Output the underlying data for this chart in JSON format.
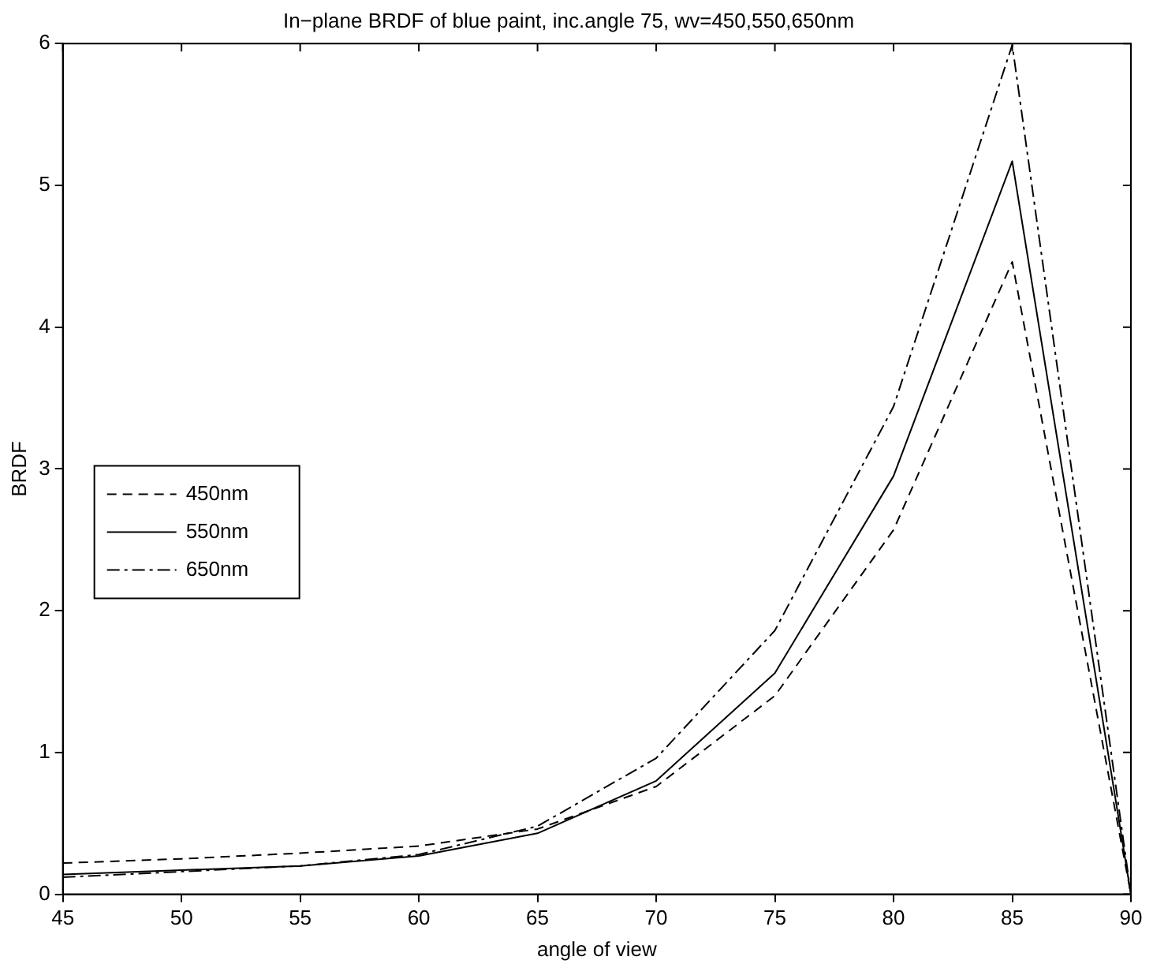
{
  "chart_data": {
    "type": "line",
    "title": "In−plane BRDF of blue paint, inc.angle 75, wv=450,550,650nm",
    "xlabel": "angle of view",
    "ylabel": "BRDF",
    "x": [
      45,
      50,
      55,
      60,
      65,
      70,
      75,
      80,
      85,
      90
    ],
    "series": [
      {
        "name": "450nm",
        "color": "#000000",
        "line_style": "dashed",
        "values": [
          0.22,
          0.25,
          0.29,
          0.34,
          0.46,
          0.76,
          1.4,
          2.57,
          4.46,
          0
        ]
      },
      {
        "name": "550nm",
        "color": "#000000",
        "line_style": "solid",
        "values": [
          0.14,
          0.17,
          0.2,
          0.27,
          0.43,
          0.8,
          1.56,
          2.95,
          5.17,
          0
        ]
      },
      {
        "name": "650nm",
        "color": "#000000",
        "line_style": "dashdot",
        "values": [
          0.12,
          0.16,
          0.2,
          0.28,
          0.48,
          0.96,
          1.86,
          3.44,
          5.99,
          0
        ]
      }
    ],
    "xlim": [
      45,
      90
    ],
    "xticks": [
      45,
      50,
      55,
      60,
      65,
      70,
      75,
      80,
      85,
      90
    ],
    "ylim": [
      0,
      6
    ],
    "yticks": [
      0,
      1,
      2,
      3,
      4,
      5,
      6
    ],
    "grid": false,
    "legend": "left",
    "marker": "none"
  }
}
